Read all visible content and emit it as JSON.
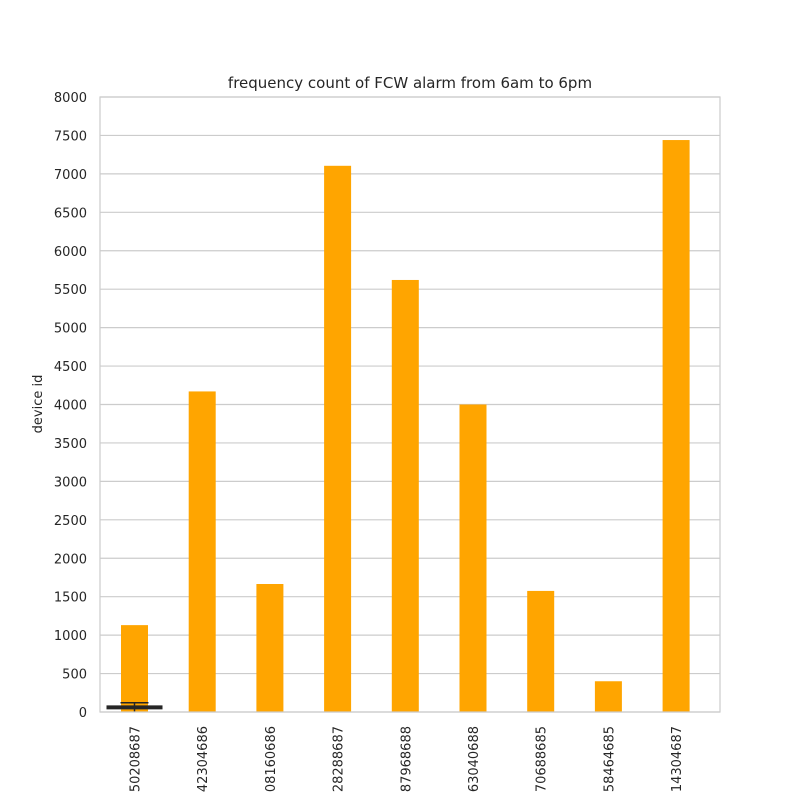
{
  "chart_data": {
    "type": "bar",
    "title": "frequency count of FCW alarm from 6am to 6pm",
    "xlabel": "",
    "ylabel": "device id",
    "categories": [
      "50208687",
      "42304686",
      "08160686",
      "28288687",
      "87968688",
      "63040688",
      "70688685",
      "58464685",
      "14304687"
    ],
    "values": [
      1130,
      4170,
      1665,
      7105,
      5620,
      4000,
      1575,
      400,
      7440
    ],
    "error_bar": {
      "category": "50208687",
      "value": 60,
      "err_low": 0,
      "err_high": 120
    },
    "ylim": [
      0,
      8000
    ],
    "yticks": [
      "0",
      "500",
      "1000",
      "1500",
      "2000",
      "2500",
      "3000",
      "3500",
      "4000",
      "4500",
      "5000",
      "5500",
      "6000",
      "6500",
      "7000",
      "7500",
      "8000"
    ],
    "grid": true,
    "bar_color": "#ffa500",
    "gridline_color": "#cccccc",
    "text_color": "#262626"
  }
}
